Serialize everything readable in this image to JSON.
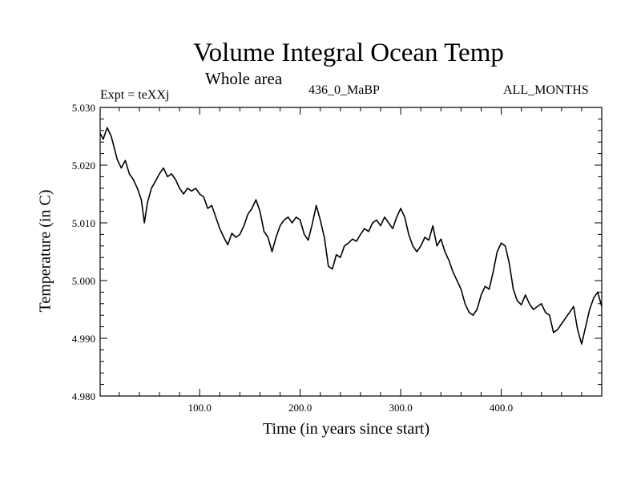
{
  "chart_data": {
    "type": "line",
    "title": "Volume Integral Ocean Temp",
    "subtitle": "Whole area",
    "experiment_label": "Expt = teXXj",
    "run_label": "436_0_MaBP",
    "period_label": "ALL_MONTHS",
    "xlabel": "Time (in years since start)",
    "ylabel": "Temperature (in C)",
    "xlim": [
      1,
      500
    ],
    "ylim": [
      4.98,
      5.03
    ],
    "xticks": [
      100,
      200,
      300,
      400
    ],
    "xtick_labels": [
      "100.0",
      "200.0",
      "300.0",
      "400.0"
    ],
    "yticks": [
      4.98,
      4.99,
      5.0,
      5.01,
      5.02,
      5.03
    ],
    "ytick_labels": [
      "4.980",
      "4.990",
      "5.000",
      "5.010",
      "5.020",
      "5.030"
    ],
    "grid": false,
    "series": [
      {
        "name": "Volume integral ocean temperature",
        "color": "#000000",
        "x": [
          1,
          4,
          8,
          12,
          15,
          18,
          22,
          26,
          30,
          34,
          38,
          42,
          45,
          48,
          52,
          56,
          60,
          64,
          68,
          72,
          76,
          80,
          84,
          88,
          92,
          96,
          100,
          104,
          108,
          112,
          116,
          120,
          124,
          128,
          132,
          136,
          140,
          144,
          148,
          152,
          156,
          160,
          164,
          168,
          172,
          176,
          180,
          184,
          188,
          192,
          196,
          200,
          204,
          208,
          212,
          216,
          220,
          224,
          228,
          232,
          236,
          240,
          244,
          248,
          252,
          256,
          260,
          264,
          268,
          272,
          276,
          280,
          284,
          288,
          292,
          296,
          300,
          304,
          308,
          312,
          316,
          320,
          324,
          328,
          332,
          336,
          340,
          344,
          348,
          352,
          356,
          360,
          364,
          368,
          372,
          376,
          380,
          384,
          388,
          392,
          396,
          400,
          404,
          408,
          412,
          416,
          420,
          424,
          428,
          432,
          436,
          440,
          444,
          448,
          452,
          456,
          460,
          464,
          468,
          472,
          476,
          480,
          484,
          488,
          492,
          496,
          500
        ],
        "values": [
          5.0255,
          5.0245,
          5.0265,
          5.025,
          5.023,
          5.021,
          5.0195,
          5.0208,
          5.0185,
          5.0175,
          5.016,
          5.014,
          5.01,
          5.0135,
          5.016,
          5.0172,
          5.0185,
          5.0195,
          5.018,
          5.0185,
          5.0175,
          5.016,
          5.015,
          5.016,
          5.0155,
          5.016,
          5.015,
          5.0145,
          5.0125,
          5.013,
          5.011,
          5.009,
          5.0075,
          5.0062,
          5.0082,
          5.0075,
          5.008,
          5.0095,
          5.0115,
          5.0125,
          5.014,
          5.012,
          5.0085,
          5.0075,
          5.005,
          5.0075,
          5.0095,
          5.0105,
          5.011,
          5.01,
          5.011,
          5.0105,
          5.008,
          5.007,
          5.0098,
          5.013,
          5.0105,
          5.0075,
          5.0025,
          5.002,
          5.0045,
          5.004,
          5.006,
          5.0065,
          5.0072,
          5.0068,
          5.008,
          5.009,
          5.0085,
          5.01,
          5.0105,
          5.0095,
          5.011,
          5.01,
          5.009,
          5.011,
          5.0125,
          5.011,
          5.008,
          5.006,
          5.005,
          5.006,
          5.0075,
          5.007,
          5.0095,
          5.006,
          5.0072,
          5.005,
          5.0035,
          5.0015,
          5.0,
          4.9985,
          4.996,
          4.9945,
          4.994,
          4.995,
          4.9975,
          4.999,
          4.9985,
          5.0015,
          5.005,
          5.0065,
          5.006,
          5.003,
          4.9985,
          4.9965,
          4.9958,
          4.9975,
          4.996,
          4.995,
          4.9955,
          4.996,
          4.9945,
          4.994,
          4.991,
          4.9915,
          4.9925,
          4.9935,
          4.9945,
          4.9955,
          4.9915,
          4.989,
          4.992,
          4.995,
          4.997,
          4.998,
          4.9955
        ]
      }
    ]
  }
}
